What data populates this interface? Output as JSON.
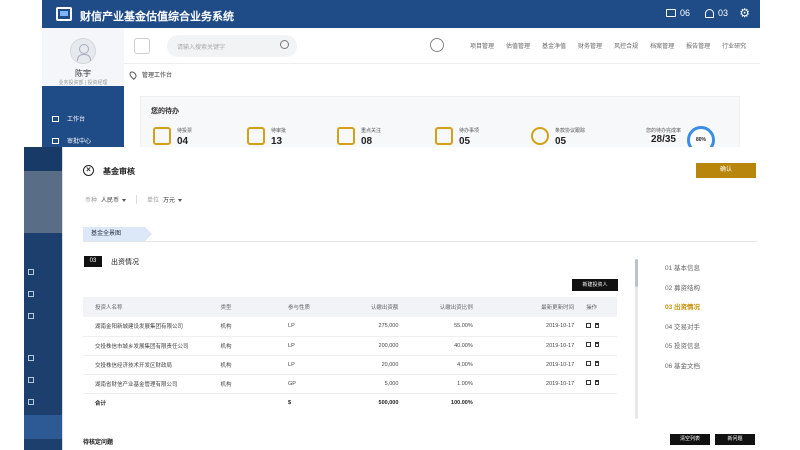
{
  "app": {
    "title": "财信产业基金估值综合业务系统",
    "messages_count": "06",
    "notifications_count": "03"
  },
  "user": {
    "name": "陈宇",
    "role": "业务投资部 | 投资经理"
  },
  "background_nav": {
    "items": [
      "工作台",
      "审批中心"
    ]
  },
  "background_header": {
    "search_placeholder": "请输入搜索关键字",
    "menus": [
      "项目管理",
      "估值管理",
      "基金净值",
      "财务管理",
      "风控合规",
      "档案管理",
      "报告管理",
      "行业研究"
    ]
  },
  "breadcrumb": "管理工作台",
  "todo_panel": {
    "title": "您的待办",
    "stats": [
      {
        "label": "待投票",
        "value": "04"
      },
      {
        "label": "待审批",
        "value": "13"
      },
      {
        "label": "重点关注",
        "value": "08"
      },
      {
        "label": "待办事项",
        "value": "05"
      },
      {
        "label": "条款协议跟踪",
        "value": "05"
      }
    ],
    "completion_label": "您的待办完成率",
    "completion_value": "28/35",
    "completion_percent": "80%"
  },
  "modal": {
    "title": "基金审核",
    "confirm_label": "确认",
    "filters": {
      "currency_label": "币种",
      "currency_value": "人民币",
      "unit_label": "单位",
      "unit_value": "万元"
    },
    "tab_label": "基金全景图",
    "section_number": "03",
    "section_title": "出资情况",
    "new_investor_label": "新建投资人",
    "table": {
      "headers": [
        "投资人名称",
        "类型",
        "参与性质",
        "认缴出资额",
        "认缴出资比例",
        "最新更新时间",
        "操作"
      ],
      "rows": [
        {
          "name": "湖南金阳新城建设发展集团有限公司",
          "type": "机构",
          "nature": "LP",
          "amount": "275,000",
          "ratio": "55.00%",
          "updated": "2019-10-17"
        },
        {
          "name": "交投株信市城乡发展集团有限责任公司",
          "type": "机构",
          "nature": "LP",
          "amount": "200,000",
          "ratio": "40.00%",
          "updated": "2019-10-17"
        },
        {
          "name": "交投株信经济技术开发区财政局",
          "type": "机构",
          "nature": "LP",
          "amount": "20,000",
          "ratio": "4.00%",
          "updated": "2019-10-17"
        },
        {
          "name": "湖南省财信产业基金管理有限公司",
          "type": "机构",
          "nature": "GP",
          "amount": "5,000",
          "ratio": "1.00%",
          "updated": "2019-10-17"
        }
      ],
      "total": {
        "label": "合计",
        "nature": "$",
        "amount": "500,000",
        "ratio": "100.00%"
      }
    },
    "steps": [
      "01 基本信息",
      "02 募资结构",
      "03 出资情况",
      "04 交易对手",
      "05 投资信息",
      "06 基金文档"
    ],
    "active_step": 2,
    "pending_title": "待核定问题",
    "clear_list_label": "清空列表",
    "new_issue_label": "新问题"
  },
  "colors": {
    "brand": "#1f4c86",
    "accent": "#b8860b",
    "active_step": "#c9900a"
  }
}
